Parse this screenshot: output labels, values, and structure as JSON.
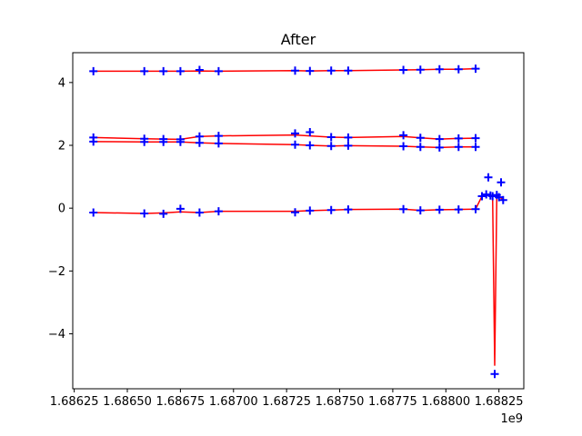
{
  "chart_data": {
    "type": "line",
    "title": "After",
    "xlabel": "",
    "ylabel": "",
    "x_offset_label": "1e9",
    "x_scale": 1000000000.0,
    "xlim": [
      1.686243,
      1.688367
    ],
    "ylim": [
      -5.75,
      4.95
    ],
    "grid": false,
    "legend": "none",
    "x_ticks": [
      1.68625,
      1.6865,
      1.68675,
      1.687,
      1.68725,
      1.6875,
      1.68775,
      1.688,
      1.68825
    ],
    "x_tick_labels": [
      "1.68625",
      "1.68650",
      "1.68675",
      "1.68700",
      "1.68725",
      "1.68750",
      "1.68775",
      "1.68800",
      "1.68825"
    ],
    "y_ticks": [
      -4,
      -2,
      0,
      2,
      4
    ],
    "y_tick_labels": [
      "−4",
      "−2",
      "0",
      "2",
      "4"
    ],
    "series": [
      {
        "style": "line",
        "color": "#ff0000",
        "x": [
          1.68634,
          1.68658,
          1.68667,
          1.68675,
          1.68684,
          1.68693,
          1.68729,
          1.68736,
          1.68746,
          1.68754,
          1.6878,
          1.68788,
          1.68797,
          1.68806,
          1.68814
        ],
        "y": [
          4.36,
          4.36,
          4.36,
          4.36,
          4.37,
          4.36,
          4.38,
          4.37,
          4.38,
          4.38,
          4.4,
          4.41,
          4.42,
          4.42,
          4.44
        ]
      },
      {
        "style": "line",
        "color": "#ff0000",
        "x": [
          1.68634,
          1.68658,
          1.68667,
          1.68675,
          1.68684,
          1.68693,
          1.68729,
          1.68736,
          1.68746,
          1.68754,
          1.6878,
          1.68788,
          1.68797,
          1.68806,
          1.68814
        ],
        "y": [
          2.25,
          2.21,
          2.2,
          2.19,
          2.28,
          2.3,
          2.33,
          2.3,
          2.26,
          2.25,
          2.28,
          2.24,
          2.2,
          2.22,
          2.23
        ]
      },
      {
        "style": "line",
        "color": "#ff0000",
        "x": [
          1.68634,
          1.68658,
          1.68667,
          1.68675,
          1.68684,
          1.68693,
          1.68729,
          1.68736,
          1.68746,
          1.68754,
          1.6878,
          1.68788,
          1.68797,
          1.68806,
          1.68814
        ],
        "y": [
          2.12,
          2.11,
          2.11,
          2.11,
          2.08,
          2.06,
          2.02,
          2.0,
          1.98,
          1.99,
          1.97,
          1.95,
          1.93,
          1.95,
          1.95
        ]
      },
      {
        "style": "line",
        "color": "#ff0000",
        "x": [
          1.68634,
          1.68658,
          1.68667,
          1.68675,
          1.68684,
          1.68693,
          1.68729,
          1.68736,
          1.68746,
          1.68754,
          1.6878,
          1.68788,
          1.68797,
          1.68806,
          1.68814,
          1.68817,
          1.6882,
          1.68822,
          1.68823,
          1.68824,
          1.68825,
          1.68826,
          1.68827
        ],
        "y": [
          -0.14,
          -0.17,
          -0.15,
          -0.12,
          -0.14,
          -0.1,
          -0.1,
          -0.08,
          -0.06,
          -0.04,
          -0.03,
          -0.07,
          -0.05,
          -0.04,
          -0.03,
          0.38,
          0.44,
          0.38,
          -5.0,
          0.42,
          0.35,
          0.32,
          0.26
        ]
      },
      {
        "style": "markers",
        "marker": "+",
        "color": "#0000ff",
        "x": [
          1.68634,
          1.68658,
          1.68667,
          1.68675,
          1.68684,
          1.68693,
          1.68729,
          1.68736,
          1.68746,
          1.68754,
          1.6878,
          1.68788,
          1.68797,
          1.68806,
          1.68814,
          1.68634,
          1.68658,
          1.68667,
          1.68675,
          1.68684,
          1.68693,
          1.68729,
          1.68736,
          1.68746,
          1.68754,
          1.6878,
          1.68788,
          1.68797,
          1.68806,
          1.68814,
          1.68634,
          1.68658,
          1.68667,
          1.68675,
          1.68684,
          1.68693,
          1.68729,
          1.68736,
          1.68746,
          1.68754,
          1.6878,
          1.68788,
          1.68797,
          1.68806,
          1.68814,
          1.68634,
          1.68658,
          1.68667,
          1.68675,
          1.68684,
          1.68693,
          1.68729,
          1.68736,
          1.68746,
          1.68754,
          1.6878,
          1.68788,
          1.68797,
          1.68806,
          1.68814,
          1.68817,
          1.68819,
          1.6882,
          1.68821,
          1.68822,
          1.68823,
          1.68824,
          1.68825,
          1.68826,
          1.68827
        ],
        "y": [
          4.36,
          4.36,
          4.36,
          4.36,
          4.4,
          4.36,
          4.38,
          4.37,
          4.38,
          4.38,
          4.4,
          4.41,
          4.42,
          4.42,
          4.44,
          2.25,
          2.21,
          2.2,
          2.19,
          2.28,
          2.3,
          2.38,
          2.42,
          2.26,
          2.25,
          2.32,
          2.24,
          2.2,
          2.22,
          2.23,
          2.12,
          2.11,
          2.11,
          2.11,
          2.08,
          2.06,
          2.02,
          2.0,
          1.98,
          1.99,
          1.97,
          1.95,
          1.93,
          1.95,
          1.95,
          -0.14,
          -0.17,
          -0.18,
          -0.02,
          -0.14,
          -0.1,
          -0.13,
          -0.08,
          -0.06,
          -0.04,
          -0.03,
          -0.07,
          -0.05,
          -0.04,
          -0.03,
          0.38,
          0.44,
          0.98,
          0.4,
          0.38,
          -5.28,
          0.42,
          0.35,
          0.82,
          0.26
        ]
      }
    ]
  }
}
